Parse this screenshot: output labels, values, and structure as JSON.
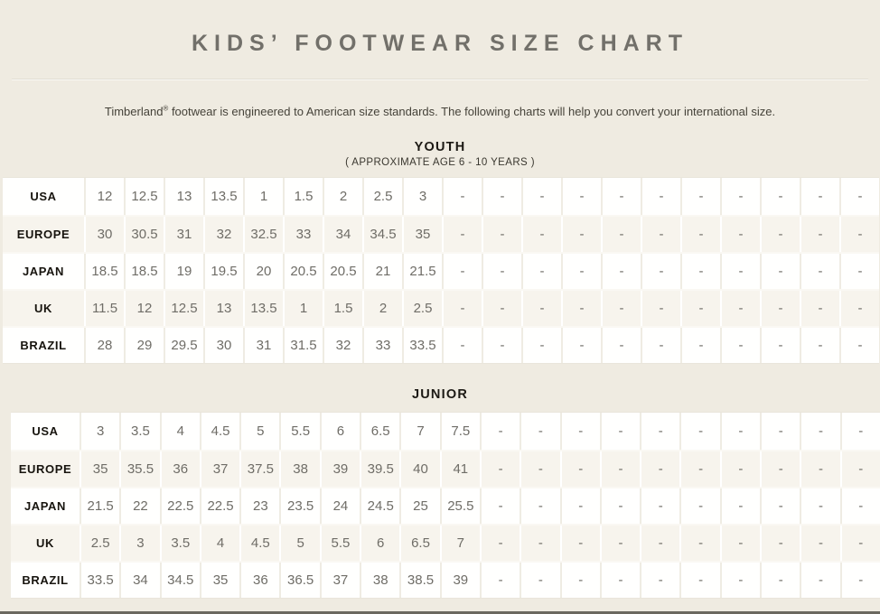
{
  "page": {
    "title": "KIDS’ FOOTWEAR SIZE CHART",
    "intro_brand": "Timberland",
    "intro_reg": "®",
    "intro_rest": " footwear is engineered to American size standards. The following charts will help you convert your international size."
  },
  "colors": {
    "background": "#efebe1",
    "row_white": "#fffffe",
    "row_beige": "#f7f4ed",
    "title_gray": "#72706a",
    "number_gray": "#6f6d67",
    "label_black": "#17140e",
    "bottom_bar": "#6b685f"
  },
  "tables": [
    {
      "id": "youth",
      "heading": "YOUTH",
      "subheading": "( APPROXIMATE AGE 6 - 10 YEARS )",
      "rows": [
        {
          "label": "USA",
          "values": [
            "12",
            "12.5",
            "13",
            "13.5",
            "1",
            "1.5",
            "2",
            "2.5",
            "3",
            "-",
            "-",
            "-",
            "-",
            "-",
            "-",
            "-",
            "-",
            "-",
            "-",
            "-"
          ]
        },
        {
          "label": "EUROPE",
          "values": [
            "30",
            "30.5",
            "31",
            "32",
            "32.5",
            "33",
            "34",
            "34.5",
            "35",
            "-",
            "-",
            "-",
            "-",
            "-",
            "-",
            "-",
            "-",
            "-",
            "-",
            "-"
          ]
        },
        {
          "label": "JAPAN",
          "values": [
            "18.5",
            "18.5",
            "19",
            "19.5",
            "20",
            "20.5",
            "20.5",
            "21",
            "21.5",
            "-",
            "-",
            "-",
            "-",
            "-",
            "-",
            "-",
            "-",
            "-",
            "-",
            "-"
          ]
        },
        {
          "label": "UK",
          "values": [
            "11.5",
            "12",
            "12.5",
            "13",
            "13.5",
            "1",
            "1.5",
            "2",
            "2.5",
            "-",
            "-",
            "-",
            "-",
            "-",
            "-",
            "-",
            "-",
            "-",
            "-",
            "-"
          ]
        },
        {
          "label": "BRAZIL",
          "values": [
            "28",
            "29",
            "29.5",
            "30",
            "31",
            "31.5",
            "32",
            "33",
            "33.5",
            "-",
            "-",
            "-",
            "-",
            "-",
            "-",
            "-",
            "-",
            "-",
            "-",
            "-"
          ]
        }
      ]
    },
    {
      "id": "junior",
      "heading": "JUNIOR",
      "subheading": "",
      "rows": [
        {
          "label": "USA",
          "values": [
            "3",
            "3.5",
            "4",
            "4.5",
            "5",
            "5.5",
            "6",
            "6.5",
            "7",
            "7.5",
            "-",
            "-",
            "-",
            "-",
            "-",
            "-",
            "-",
            "-",
            "-",
            "-"
          ]
        },
        {
          "label": "EUROPE",
          "values": [
            "35",
            "35.5",
            "36",
            "37",
            "37.5",
            "38",
            "39",
            "39.5",
            "40",
            "41",
            "-",
            "-",
            "-",
            "-",
            "-",
            "-",
            "-",
            "-",
            "-",
            "-"
          ]
        },
        {
          "label": "JAPAN",
          "values": [
            "21.5",
            "22",
            "22.5",
            "22.5",
            "23",
            "23.5",
            "24",
            "24.5",
            "25",
            "25.5",
            "-",
            "-",
            "-",
            "-",
            "-",
            "-",
            "-",
            "-",
            "-",
            "-"
          ]
        },
        {
          "label": "UK",
          "values": [
            "2.5",
            "3",
            "3.5",
            "4",
            "4.5",
            "5",
            "5.5",
            "6",
            "6.5",
            "7",
            "-",
            "-",
            "-",
            "-",
            "-",
            "-",
            "-",
            "-",
            "-",
            "-"
          ]
        },
        {
          "label": "BRAZIL",
          "values": [
            "33.5",
            "34",
            "34.5",
            "35",
            "36",
            "36.5",
            "37",
            "38",
            "38.5",
            "39",
            "-",
            "-",
            "-",
            "-",
            "-",
            "-",
            "-",
            "-",
            "-",
            "-"
          ]
        }
      ]
    }
  ]
}
